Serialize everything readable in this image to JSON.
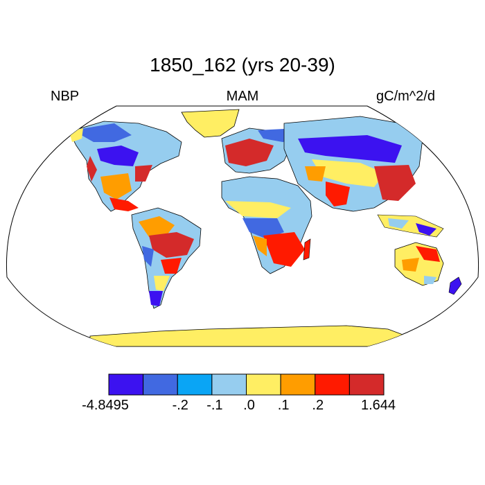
{
  "title": "1850_162 (yrs 20-39)",
  "left_label": "NBP",
  "center_label": "MAM",
  "right_label": "gC/m^2/d",
  "colorbar": {
    "colors": [
      "#3c12f0",
      "#4169e1",
      "#0aa5f5",
      "#96cdef",
      "#ffee63",
      "#ff9d00",
      "#ff1a00",
      "#d42a2a"
    ],
    "labels": [
      "-4.8495",
      "-.2",
      "-.1",
      ".0",
      ".1",
      ".2",
      "1.644"
    ]
  },
  "colors": {
    "ocean": "#ffffff",
    "coast": "#000000"
  }
}
